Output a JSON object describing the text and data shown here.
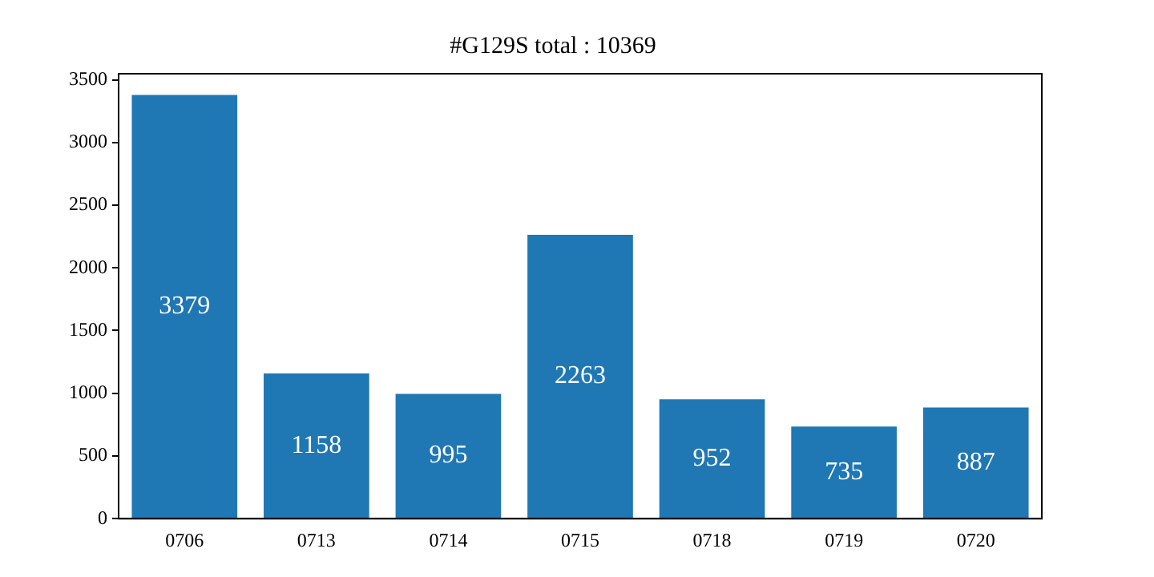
{
  "chart_data": {
    "type": "bar",
    "title": "#G129S total : 10369",
    "categories": [
      "0706",
      "0713",
      "0714",
      "0715",
      "0718",
      "0719",
      "0720"
    ],
    "values": [
      3379,
      1158,
      995,
      2263,
      952,
      735,
      887
    ],
    "color": "#1f77b4",
    "ylim": [
      0,
      3548
    ],
    "yticks": [
      0,
      500,
      1000,
      1500,
      2000,
      2500,
      3000,
      3500
    ],
    "grid": false,
    "legend": false,
    "data_labels": true
  }
}
